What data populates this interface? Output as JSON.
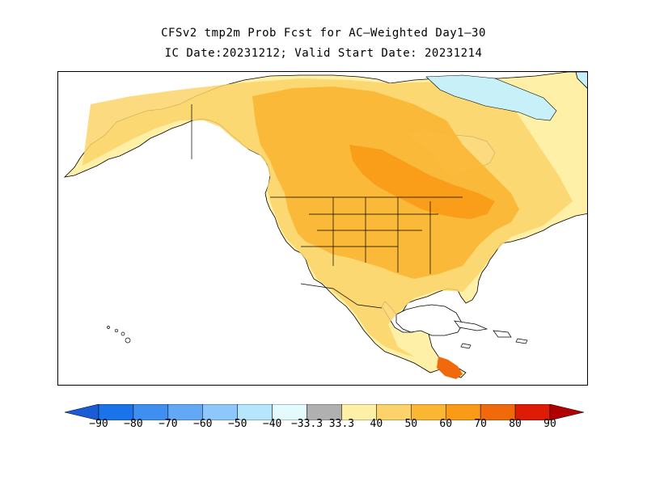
{
  "title": {
    "line1": "CFSv2 tmp2m Prob Fcst for AC—Weighted Day1—30",
    "line2": "IC Date:20231212; Valid Start Date: 20231214"
  },
  "colors": {
    "water": "#ffffff",
    "ocean_outline": "#000000",
    "cat_below_40_50": "#c7f0f8",
    "cat_above_33_40": "#fff0a8",
    "cat_above_40_50": "#fcd36a",
    "cat_above_50_60": "#fbb634",
    "cat_above_60_70": "#f99b16",
    "cat_above_70_80": "#f06a0c",
    "cat_above_80_90": "#dd1b06"
  },
  "colorbar": {
    "labels": [
      "−90",
      "−80",
      "−70",
      "−60",
      "−50",
      "−40",
      "−33.3",
      "33.3",
      "40",
      "50",
      "60",
      "70",
      "80",
      "90"
    ],
    "segment_colors": [
      "#1a73e8",
      "#3f8ff0",
      "#62a8f5",
      "#8ec7fb",
      "#b6e6fb",
      "#e4fbfd",
      "#b0b0b0",
      "#fff0a8",
      "#fcd36a",
      "#fbb634",
      "#f99b16",
      "#f06a0c",
      "#dd1b06"
    ],
    "left_arrow_color": "#1a5bd8",
    "right_arrow_color": "#b00000"
  }
}
